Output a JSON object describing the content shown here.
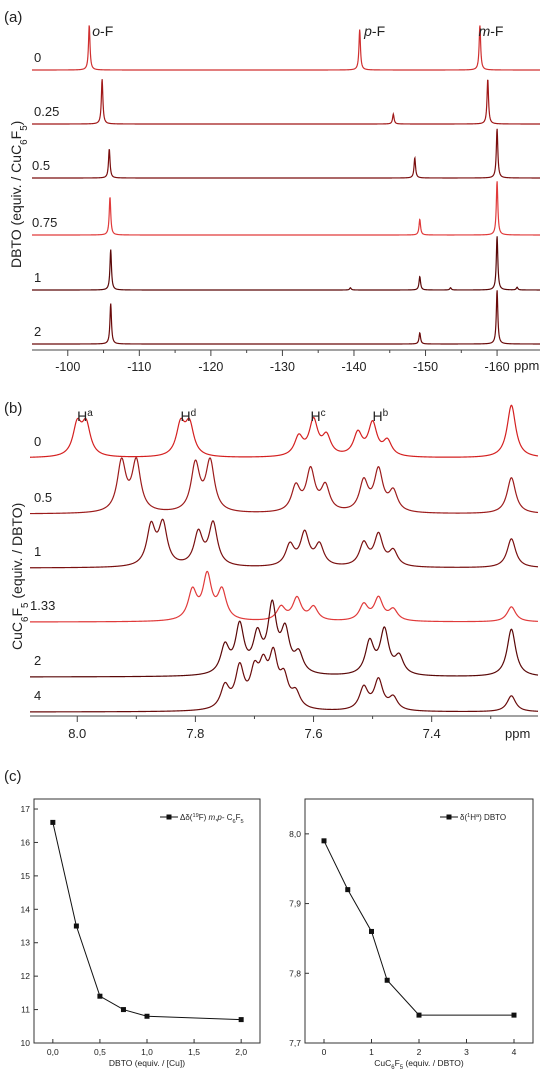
{
  "chart_data": [
    {
      "panel": "(a)",
      "type": "line",
      "xlabel": "ppm",
      "ylabel": "DBTO (equiv. / CuC6F5)",
      "ylabel_parts": [
        "DBTO (equiv. / CuC",
        "6",
        "F",
        "5",
        ")"
      ],
      "xlim": [
        -95,
        -166
      ],
      "x_ticks": [
        -100,
        -110,
        -120,
        -130,
        -140,
        -150,
        -160
      ],
      "peak_labels": [
        {
          "prefix": "o",
          "text": "-F",
          "x": -103
        },
        {
          "prefix": "p",
          "text": "-F",
          "x": -141
        },
        {
          "prefix": "m",
          "text": "-F",
          "x": -157
        }
      ],
      "series": [
        {
          "name": "0",
          "color": "#d03030",
          "peaks": [
            {
              "x": -103.0,
              "h": 1.0
            },
            {
              "x": -140.8,
              "h": 0.9
            },
            {
              "x": -157.6,
              "h": 1.0
            }
          ]
        },
        {
          "name": "0.25",
          "color": "#a01818",
          "peaks": [
            {
              "x": -104.8,
              "h": 1.0
            },
            {
              "x": -145.5,
              "h": 0.22
            },
            {
              "x": -158.7,
              "h": 1.0
            }
          ]
        },
        {
          "name": "0.5",
          "color": "#7a0e0e",
          "peaks": [
            {
              "x": -105.8,
              "h": 0.65
            },
            {
              "x": -148.5,
              "h": 0.45
            },
            {
              "x": -160.0,
              "h": 1.1
            }
          ]
        },
        {
          "name": "0.75",
          "color": "#e03a3a",
          "peaks": [
            {
              "x": -105.9,
              "h": 0.85
            },
            {
              "x": -149.2,
              "h": 0.35
            },
            {
              "x": -160.0,
              "h": 1.2
            }
          ]
        },
        {
          "name": "1",
          "color": "#5a0808",
          "peaks": [
            {
              "x": -106.0,
              "h": 0.9
            },
            {
              "x": -149.2,
              "h": 0.3
            },
            {
              "x": -160.0,
              "h": 1.2
            },
            {
              "x": -139.5,
              "h": 0.05
            },
            {
              "x": -153.5,
              "h": 0.05
            },
            {
              "x": -162.8,
              "h": 0.06
            }
          ]
        },
        {
          "name": "2",
          "color": "#6a0a0a",
          "peaks": [
            {
              "x": -106.0,
              "h": 0.9
            },
            {
              "x": -149.2,
              "h": 0.25
            },
            {
              "x": -160.0,
              "h": 1.2
            }
          ]
        }
      ]
    },
    {
      "panel": "(b)",
      "type": "line",
      "xlabel": "ppm",
      "ylabel": "CuC6F5 (equiv. / DBTO)",
      "ylabel_parts": [
        "CuC",
        "6",
        "F",
        "5",
        " (equiv. / DBTO)"
      ],
      "xlim": [
        8.08,
        7.22
      ],
      "x_ticks": [
        8.0,
        7.8,
        7.6,
        7.4
      ],
      "peak_labels": [
        {
          "text": "H",
          "sup": "a",
          "x": 7.99
        },
        {
          "text": "H",
          "sup": "d",
          "x": 7.815
        },
        {
          "text": "H",
          "sup": "c",
          "x": 7.595
        },
        {
          "text": "H",
          "sup": "b",
          "x": 7.49
        }
      ],
      "series": [
        {
          "name": "0",
          "color": "#d42020",
          "peaks": [
            {
              "x": 8.0,
              "h": 0.62
            },
            {
              "x": 7.985,
              "h": 0.62
            },
            {
              "x": 7.825,
              "h": 0.62
            },
            {
              "x": 7.81,
              "h": 0.62
            },
            {
              "x": 7.625,
              "h": 0.38
            },
            {
              "x": 7.6,
              "h": 0.7
            },
            {
              "x": 7.578,
              "h": 0.38
            },
            {
              "x": 7.525,
              "h": 0.45
            },
            {
              "x": 7.5,
              "h": 0.65
            },
            {
              "x": 7.475,
              "h": 0.3
            },
            {
              "x": 7.265,
              "h": 1.05
            }
          ]
        },
        {
          "name": "0.5",
          "color": "#9c1c1c",
          "peaks": [
            {
              "x": 7.925,
              "h": 1.0
            },
            {
              "x": 7.9,
              "h": 1.0
            },
            {
              "x": 7.8,
              "h": 0.95
            },
            {
              "x": 7.775,
              "h": 1.0
            },
            {
              "x": 7.63,
              "h": 0.5
            },
            {
              "x": 7.605,
              "h": 0.82
            },
            {
              "x": 7.58,
              "h": 0.5
            },
            {
              "x": 7.515,
              "h": 0.6
            },
            {
              "x": 7.49,
              "h": 0.82
            },
            {
              "x": 7.465,
              "h": 0.4
            },
            {
              "x": 7.265,
              "h": 0.72
            }
          ]
        },
        {
          "name": "1",
          "color": "#7a1010",
          "peaks": [
            {
              "x": 7.875,
              "h": 0.78
            },
            {
              "x": 7.855,
              "h": 0.82
            },
            {
              "x": 7.795,
              "h": 0.65
            },
            {
              "x": 7.77,
              "h": 0.85
            },
            {
              "x": 7.64,
              "h": 0.42
            },
            {
              "x": 7.615,
              "h": 0.65
            },
            {
              "x": 7.59,
              "h": 0.42
            },
            {
              "x": 7.515,
              "h": 0.45
            },
            {
              "x": 7.49,
              "h": 0.62
            },
            {
              "x": 7.465,
              "h": 0.3
            },
            {
              "x": 7.265,
              "h": 0.58
            }
          ]
        },
        {
          "name": "1.33",
          "color": "#e03a3a",
          "peaks": [
            {
              "x": 7.805,
              "h": 0.58
            },
            {
              "x": 7.78,
              "h": 0.88
            },
            {
              "x": 7.755,
              "h": 0.58
            },
            {
              "x": 7.655,
              "h": 0.27
            },
            {
              "x": 7.628,
              "h": 0.45
            },
            {
              "x": 7.6,
              "h": 0.27
            },
            {
              "x": 7.515,
              "h": 0.32
            },
            {
              "x": 7.49,
              "h": 0.45
            },
            {
              "x": 7.465,
              "h": 0.22
            },
            {
              "x": 7.265,
              "h": 0.3
            }
          ]
        },
        {
          "name": "2",
          "color": "#5a0808",
          "peaks": [
            {
              "x": 7.75,
              "h": 0.55
            },
            {
              "x": 7.725,
              "h": 0.95
            },
            {
              "x": 7.695,
              "h": 0.72
            },
            {
              "x": 7.67,
              "h": 1.3
            },
            {
              "x": 7.648,
              "h": 0.8
            },
            {
              "x": 7.625,
              "h": 0.38
            },
            {
              "x": 7.505,
              "h": 0.65
            },
            {
              "x": 7.48,
              "h": 0.88
            },
            {
              "x": 7.455,
              "h": 0.35
            },
            {
              "x": 7.265,
              "h": 0.95
            }
          ]
        },
        {
          "name": "4",
          "color": "#6a0c0c",
          "peaks": [
            {
              "x": 7.75,
              "h": 0.45
            },
            {
              "x": 7.725,
              "h": 0.8
            },
            {
              "x": 7.7,
              "h": 0.65
            },
            {
              "x": 7.685,
              "h": 0.7
            },
            {
              "x": 7.668,
              "h": 0.95
            },
            {
              "x": 7.65,
              "h": 0.55
            },
            {
              "x": 7.63,
              "h": 0.3
            },
            {
              "x": 7.515,
              "h": 0.45
            },
            {
              "x": 7.49,
              "h": 0.6
            },
            {
              "x": 7.465,
              "h": 0.25
            },
            {
              "x": 7.265,
              "h": 0.32
            }
          ]
        }
      ]
    },
    {
      "panel": "(c)",
      "type": "line",
      "xlabel": "DBTO (equiv. / [Cu])",
      "x": [
        0.0,
        0.25,
        0.5,
        0.75,
        1.0,
        2.0
      ],
      "y": [
        16.6,
        13.5,
        11.4,
        11.0,
        10.8,
        10.7
      ],
      "xlim": [
        -0.2,
        2.2
      ],
      "ylim": [
        10,
        17.3
      ],
      "x_ticks": [
        "0,0",
        "0,5",
        "1,0",
        "1,5",
        "2,0"
      ],
      "x_tick_values": [
        0,
        0.5,
        1.0,
        1.5,
        2.0
      ],
      "y_ticks": [
        10,
        11,
        12,
        13,
        14,
        15,
        16,
        17
      ],
      "legend": "top-right",
      "legend_label": "Δδ(19F) m,p- C6F5",
      "legend_parts": [
        "Δδ(",
        "19",
        "F) ",
        "m",
        ",",
        "p",
        "- C",
        "6",
        "F",
        "5"
      ]
    },
    {
      "panel": "(c)",
      "type": "line",
      "xlabel": "CuC6F5 (equiv. / DBTO)",
      "xlabel_parts": [
        "CuC",
        "6",
        "F",
        "5",
        " (equiv. / DBTO)"
      ],
      "x": [
        0,
        0.5,
        1.0,
        1.33,
        2.0,
        4.0
      ],
      "y": [
        7.99,
        7.92,
        7.86,
        7.79,
        7.74,
        7.74
      ],
      "xlim": [
        -0.4,
        4.4
      ],
      "ylim": [
        7.7,
        8.05
      ],
      "x_ticks": [
        "0",
        "1",
        "2",
        "3",
        "4"
      ],
      "x_tick_values": [
        0,
        1,
        2,
        3,
        4
      ],
      "y_ticks": [
        "7,7",
        "7,8",
        "7,9",
        "8,0"
      ],
      "y_tick_values": [
        7.7,
        7.8,
        7.9,
        8.0
      ],
      "legend": "top-right",
      "legend_label": "δ(1Ha) DBTO",
      "legend_parts": [
        "δ(",
        "1",
        "H",
        "a",
        ") DBTO"
      ]
    }
  ]
}
